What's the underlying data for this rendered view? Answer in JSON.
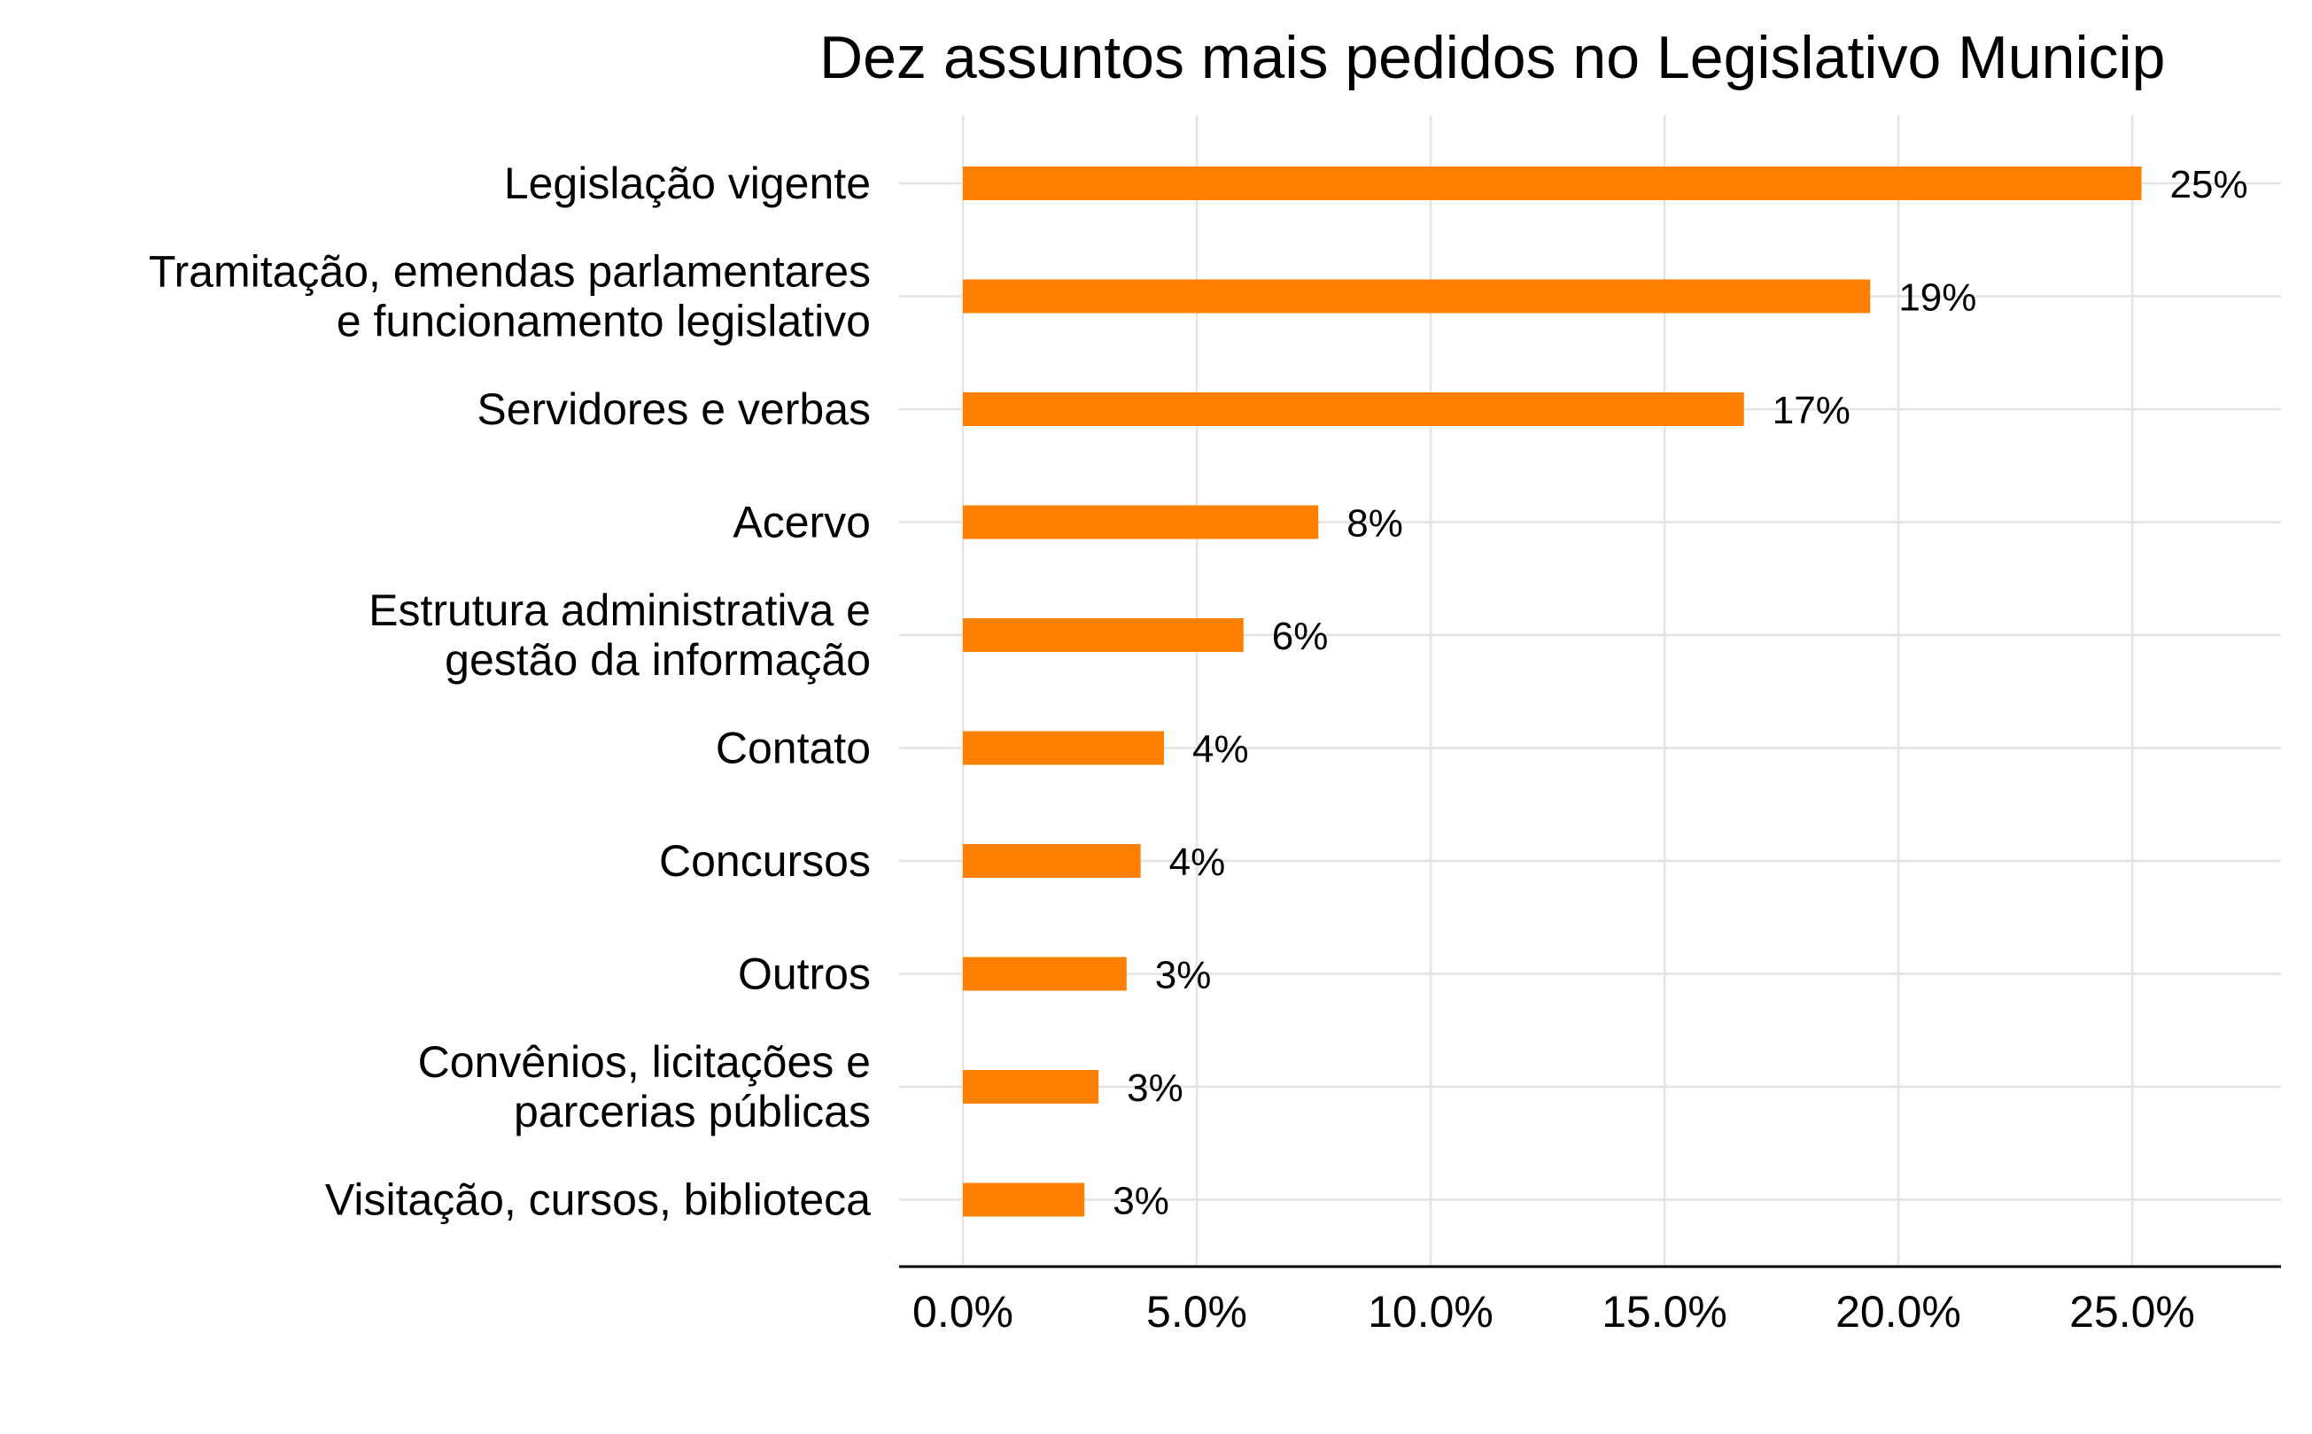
{
  "chart_data": {
    "type": "bar",
    "orientation": "horizontal",
    "title": "Dez assuntos mais pedidos no Legislativo Municip",
    "xlabel": "",
    "ylabel": "",
    "xlim": [
      0,
      28.3
    ],
    "x_ticks": [
      0,
      5,
      10,
      15,
      20,
      25
    ],
    "x_tick_labels": [
      "0.0%",
      "5.0%",
      "10.0%",
      "15.0%",
      "20.0%",
      "25.0%"
    ],
    "grid": true,
    "legend": "none",
    "bar_color": "#FF8000",
    "categories": [
      [
        "Legislação vigente"
      ],
      [
        "Tramitação, emendas parlamentares",
        "e funcionamento legislativo"
      ],
      [
        "Servidores e verbas"
      ],
      [
        "Acervo"
      ],
      [
        "Estrutura administrativa e",
        "gestão da informação"
      ],
      [
        "Contato"
      ],
      [
        "Concursos"
      ],
      [
        "Outros"
      ],
      [
        "Convênios, licitações e",
        "parcerias públicas"
      ],
      [
        "Visitação, cursos, biblioteca"
      ]
    ],
    "values": [
      25.2,
      19.4,
      16.7,
      7.6,
      6.0,
      4.3,
      3.8,
      3.5,
      2.9,
      2.6
    ],
    "value_labels": [
      "25%",
      "19%",
      "17%",
      "8%",
      "6%",
      "4%",
      "4%",
      "3%",
      "3%",
      "3%"
    ]
  }
}
